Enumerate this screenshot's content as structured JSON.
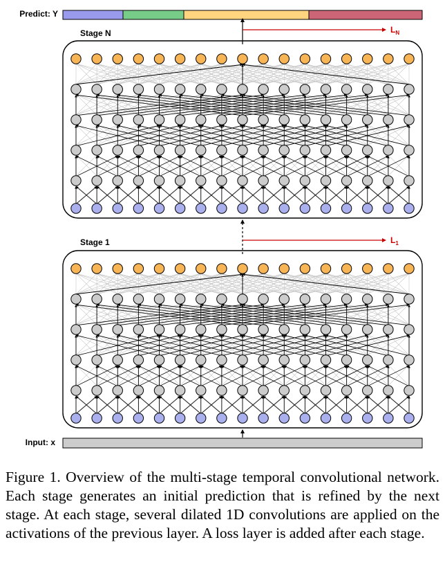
{
  "predict_label": "Predict: Y",
  "predict_colors": [
    "#9999ee",
    "#77cc88",
    "#ffd580",
    "#cc6677"
  ],
  "input_label": "Input: x",
  "stages": [
    {
      "title": "Stage N",
      "loss_main": "L",
      "loss_sub": "N"
    },
    {
      "title": "Stage 1",
      "loss_main": "L",
      "loss_sub": "1"
    }
  ],
  "caption": "Figure 1. Overview of the multi-stage temporal convolutional network. Each stage generates an initial prediction that is refined by the next stage. At each stage, several dilated 1D convolutions are applied on the activations of the previous layer. A loss layer is added after each stage.",
  "colors": {
    "input_node": "#aab0ee",
    "hidden_node": "#cccccc",
    "output_node": "#f8b556",
    "loss_arrow": "#cc0000",
    "input_bar": "#cccccc",
    "faint_edge": "#c4c4c4"
  }
}
